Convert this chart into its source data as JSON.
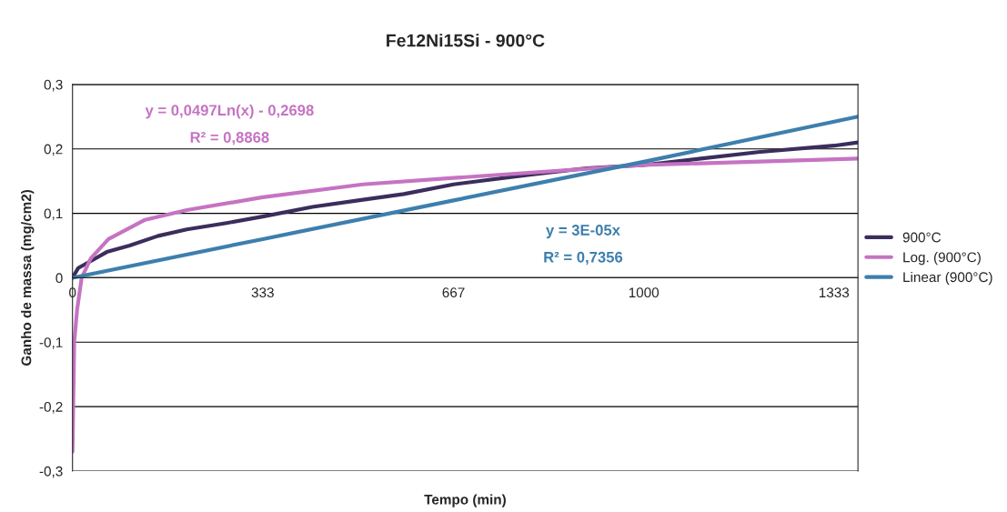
{
  "chart_data": {
    "type": "line",
    "title": "Fe12Ni15Si - 900°C",
    "xlabel": "Tempo (min)",
    "ylabel": "Ganho de massa (mg/cm2)",
    "series": [
      {
        "name": "900°C",
        "color": "#3b2d5c",
        "x": [
          0,
          10,
          30,
          60,
          100,
          150,
          200,
          270,
          333,
          420,
          500,
          580,
          667,
          800,
          900,
          1000,
          1100,
          1200,
          1333,
          1375
        ],
        "values": [
          0,
          0.015,
          0.025,
          0.04,
          0.05,
          0.065,
          0.075,
          0.085,
          0.095,
          0.11,
          0.12,
          0.13,
          0.145,
          0.16,
          0.17,
          0.175,
          0.185,
          0.195,
          0.205,
          0.21
        ]
      },
      {
        "name": "Log. (900°C)",
        "color": "#c673c3",
        "x": [
          0,
          3,
          8,
          16,
          32,
          63,
          127,
          200,
          333,
          508,
          667,
          1000,
          1375
        ],
        "values": [
          -0.27,
          -0.1,
          -0.05,
          0,
          0.03,
          0.06,
          0.09,
          0.105,
          0.125,
          0.145,
          0.155,
          0.175,
          0.185
        ]
      },
      {
        "name": "Linear (900°C)",
        "color": "#3d7fad",
        "x": [
          0,
          333,
          667,
          1000,
          1375
        ],
        "values": [
          0,
          0.06,
          0.12,
          0.18,
          0.25
        ]
      }
    ],
    "xlim": [
      0,
      1375
    ],
    "xticks": [
      0,
      333,
      667,
      1000,
      1333
    ],
    "ylim": [
      -0.3,
      0.3
    ],
    "yticks": [
      {
        "value": -0.3,
        "label": "-0,3"
      },
      {
        "value": -0.2,
        "label": "-0,2"
      },
      {
        "value": -0.1,
        "label": "-0,1"
      },
      0,
      {
        "value": 0.1,
        "label": "0,1"
      },
      {
        "value": 0.2,
        "label": "0,2"
      },
      {
        "value": 0.3,
        "label": "0,3"
      }
    ],
    "annotations": [
      "y = 0,0497Ln(x) - 0,2698",
      "R² = 0,8868",
      "y = 3E-05x",
      "R² = 0,7356"
    ],
    "grid": "y",
    "legend": "right",
    "marker": "none",
    "line_style": "solid"
  }
}
